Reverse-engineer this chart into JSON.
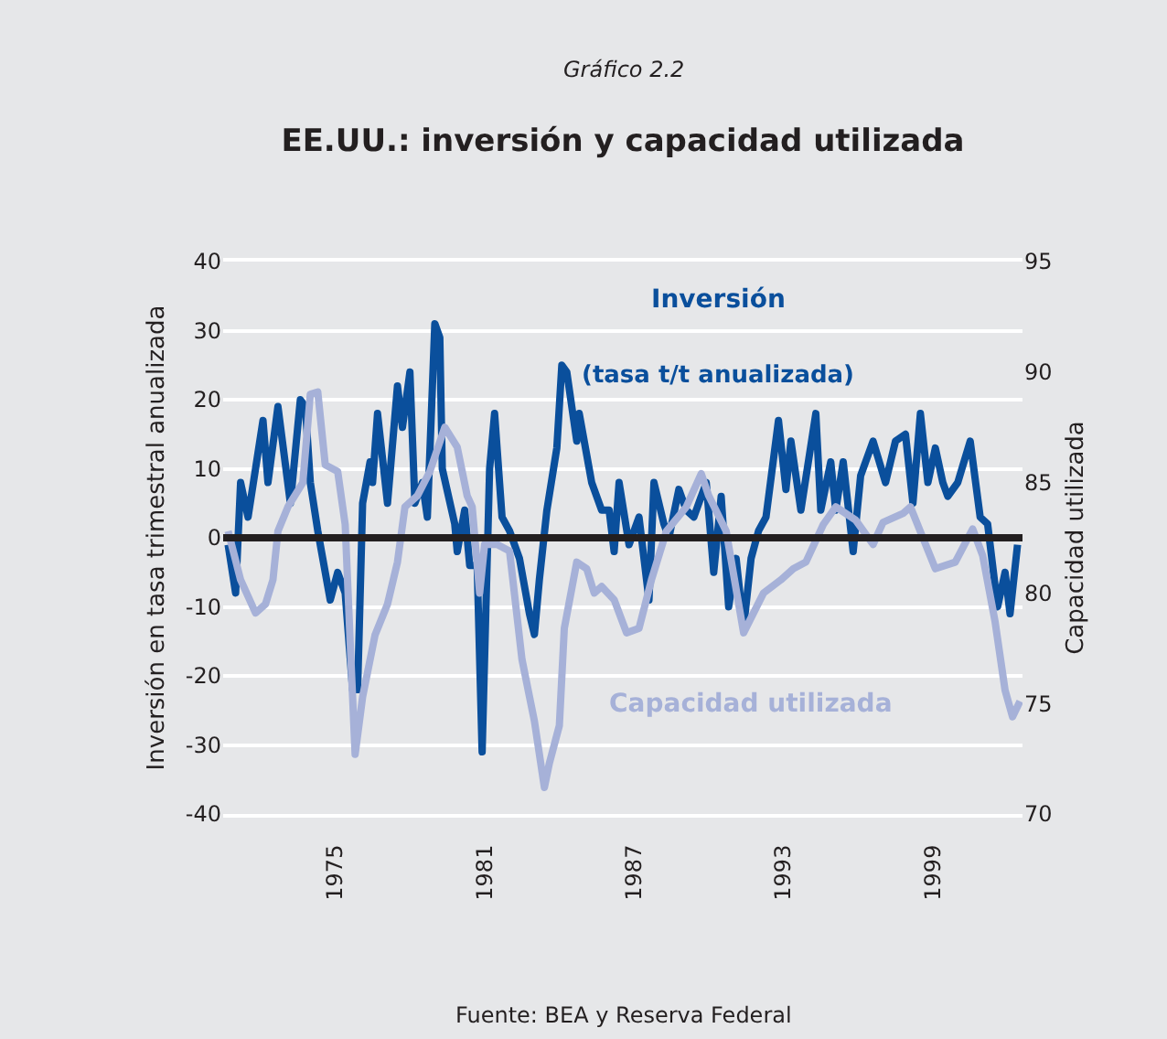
{
  "chart_data": {
    "type": "line",
    "subtitle": "Gráfico 2.2",
    "title": "EE.UU.: inversión y capacidad utilizada",
    "ylabel": "Inversión en tasa trimestral anualizada",
    "y2label": "Capacidad utilizada",
    "annotations": [
      "(tasa t/t anualizada)",
      "Fuente: BEA y Reserva Federal"
    ],
    "xlim": [
      1970.5,
      2002.6
    ],
    "xticks": [
      1975,
      1981,
      1987,
      1993,
      1999
    ],
    "ylim": [
      -40,
      40
    ],
    "yticks": [
      -40,
      -30,
      -20,
      -10,
      0,
      10,
      20,
      30,
      40
    ],
    "y2lim": [
      70,
      95
    ],
    "y2ticks": [
      70,
      75,
      80,
      85,
      90,
      95
    ],
    "grid": "y",
    "legend": false,
    "line_style": "solid",
    "marker": "none",
    "ref_lines": [
      {
        "axis": "y",
        "value": 0,
        "color": "#231f20"
      }
    ],
    "series": [
      {
        "name": "Inversión",
        "color": "#0a4f9c",
        "x": [
          1970.7,
          1971.0,
          1971.2,
          1971.5,
          1971.8,
          1972.1,
          1972.3,
          1972.7,
          1973.2,
          1973.6,
          1973.8,
          1974.0,
          1974.3,
          1974.8,
          1975.1,
          1975.4,
          1975.7,
          1975.9,
          1976.1,
          1976.4,
          1976.5,
          1976.7,
          1977.1,
          1977.5,
          1977.7,
          1978.0,
          1978.2,
          1978.5,
          1978.7,
          1979.0,
          1979.2,
          1979.3,
          1979.8,
          1979.9,
          1980.2,
          1980.4,
          1980.7,
          1980.9,
          1981.2,
          1981.4,
          1981.7,
          1982.0,
          1982.4,
          1982.8,
          1983.0,
          1983.2,
          1983.5,
          1983.9,
          1984.1,
          1984.3,
          1984.7,
          1984.8,
          1985.3,
          1985.7,
          1986.0,
          1986.2,
          1986.4,
          1986.8,
          1987.2,
          1987.6,
          1987.8,
          1988.2,
          1988.4,
          1988.8,
          1989.1,
          1989.4,
          1989.9,
          1990.2,
          1990.5,
          1990.8,
          1991.1,
          1991.4,
          1991.7,
          1992.0,
          1992.3,
          1992.8,
          1993.1,
          1993.3,
          1993.7,
          1994.3,
          1994.5,
          1994.9,
          1995.1,
          1995.4,
          1995.8,
          1996.1,
          1996.6,
          1997.1,
          1997.5,
          1997.9,
          1998.2,
          1998.5,
          1998.8,
          1999.1,
          1999.4,
          1999.6,
          2000.0,
          2000.5,
          2000.9,
          2001.2,
          2001.6,
          2001.9,
          2002.1,
          2002.4
        ],
        "values": [
          -1,
          -8,
          8,
          3,
          10,
          17,
          8,
          19,
          5,
          20,
          19,
          8,
          1,
          -9,
          -5,
          -8,
          -22,
          -22,
          5,
          11,
          8,
          18,
          5,
          22,
          16,
          24,
          5,
          8,
          3,
          31,
          29,
          10,
          2,
          -2,
          4,
          -4,
          -4,
          -31,
          10,
          18,
          3,
          1,
          -3,
          -11,
          -14,
          -6,
          4,
          13,
          25,
          24,
          14,
          18,
          8,
          4,
          4,
          -2,
          8,
          -1,
          3,
          -9,
          8,
          2,
          0,
          7,
          4,
          3,
          8,
          -5,
          6,
          -10,
          -3,
          -13,
          -3,
          1,
          3,
          17,
          7,
          14,
          4,
          18,
          4,
          11,
          4,
          11,
          -2,
          9,
          14,
          8,
          14,
          15,
          5,
          18,
          8,
          13,
          8,
          6,
          8,
          14,
          3,
          2,
          -10,
          -5,
          -11,
          -1
        ]
      },
      {
        "name": "Capacidad utilizada",
        "color": "#a6b1d8",
        "axis": "y2",
        "x": [
          1970.7,
          1971.2,
          1971.8,
          1972.2,
          1972.5,
          1972.7,
          1973.1,
          1973.7,
          1974.0,
          1974.3,
          1974.6,
          1975.1,
          1975.4,
          1975.6,
          1975.8,
          1976.1,
          1976.6,
          1977.1,
          1977.5,
          1977.8,
          1978.3,
          1978.8,
          1979.4,
          1979.9,
          1980.3,
          1980.5,
          1980.8,
          1981.0,
          1981.5,
          1982.0,
          1982.5,
          1983.0,
          1983.4,
          1983.6,
          1984.0,
          1984.2,
          1984.7,
          1985.1,
          1985.4,
          1985.7,
          1986.2,
          1986.7,
          1987.2,
          1987.7,
          1988.3,
          1989.1,
          1989.7,
          1990.0,
          1990.7,
          1991.4,
          1992.2,
          1992.9,
          1993.4,
          1993.9,
          1994.6,
          1995.1,
          1995.9,
          1996.6,
          1997.0,
          1997.8,
          1998.1,
          1998.6,
          1999.1,
          1999.9,
          2000.6,
          2001.0,
          2001.5,
          2001.9,
          2002.2,
          2002.5
        ],
        "values": [
          82.8,
          80.6,
          79.1,
          79.5,
          80.6,
          82.8,
          83.9,
          85.0,
          89.0,
          89.1,
          85.8,
          85.5,
          83.1,
          77.8,
          72.7,
          75.3,
          78.1,
          79.5,
          81.4,
          83.9,
          84.4,
          85.5,
          87.5,
          86.6,
          84.4,
          83.9,
          80.0,
          82.2,
          82.2,
          81.9,
          77.0,
          74.2,
          71.2,
          72.3,
          74.0,
          78.4,
          81.4,
          81.1,
          80.0,
          80.3,
          79.7,
          78.2,
          78.4,
          80.6,
          82.8,
          83.9,
          85.4,
          84.4,
          82.8,
          78.2,
          80.0,
          80.6,
          81.1,
          81.4,
          83.1,
          83.9,
          83.3,
          82.2,
          83.2,
          83.6,
          83.9,
          82.5,
          81.1,
          81.4,
          82.9,
          81.7,
          78.7,
          75.6,
          74.4,
          75.1
        ]
      }
    ]
  }
}
